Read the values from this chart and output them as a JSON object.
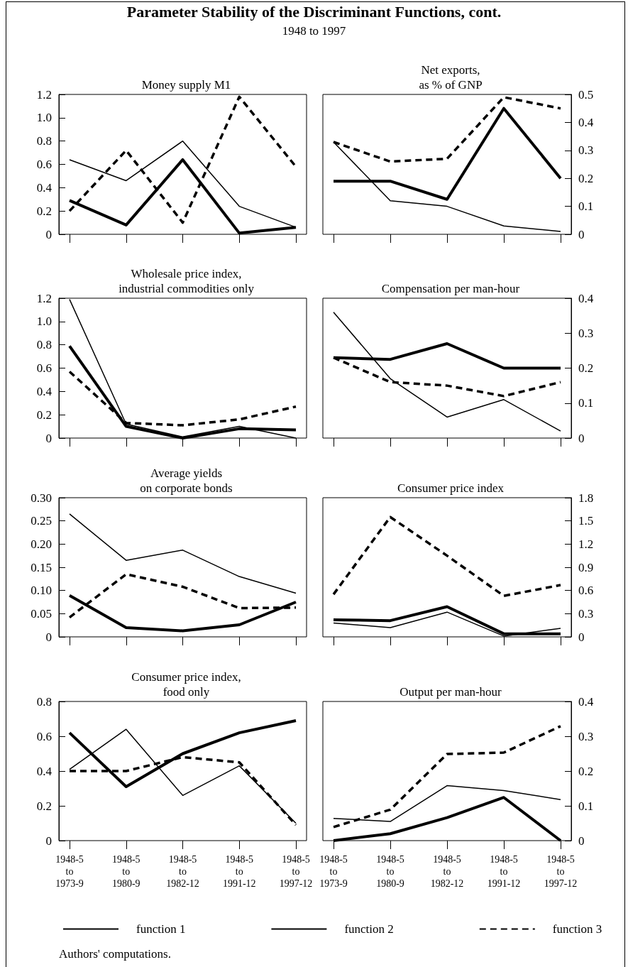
{
  "chart_data": [
    {
      "type": "other",
      "title": "Parameter Stability of the Discriminant Functions, cont.",
      "subtitle": "1948 to 1997",
      "annotations": [
        "Authors' computations."
      ]
    },
    {
      "type": "line",
      "title": "Money supply M1",
      "categories": [
        null,
        null,
        null,
        null,
        null
      ],
      "ylim": [
        0,
        1.2
      ],
      "yticks": [
        0,
        0.2,
        0.4,
        0.6,
        0.8,
        {
          "value": 1,
          "label": "1.0"
        },
        1.2
      ],
      "tick_labels": "y",
      "marker": "none",
      "series": [
        {
          "color": "#000000",
          "line_style": "solid",
          "values": [
            0.29,
            0.08,
            0.64,
            0.01,
            0.06
          ]
        },
        {
          "color": "#000000",
          "line_style": "solid",
          "values": [
            0.64,
            0.46,
            0.8,
            0.24,
            0.06
          ]
        },
        {
          "color": "#000000",
          "line_style": "dashed",
          "values": [
            0.2,
            0.72,
            0.1,
            1.18,
            0.58
          ]
        }
      ]
    },
    {
      "type": "line",
      "title": "Net exports,\nas % of GNP",
      "categories": [
        null,
        null,
        null,
        null,
        null
      ],
      "ylim": [
        0,
        0.5
      ],
      "yticks": [
        0,
        0.1,
        0.2,
        0.3,
        0.4,
        0.5
      ],
      "tick_labels": "y",
      "marker": "none",
      "series": [
        {
          "color": "#000000",
          "line_style": "solid",
          "values": [
            0.19,
            0.19,
            0.125,
            0.45,
            0.2
          ]
        },
        {
          "color": "#000000",
          "line_style": "solid",
          "values": [
            0.33,
            0.12,
            0.1,
            0.03,
            0.01
          ]
        },
        {
          "color": "#000000",
          "line_style": "dashed",
          "values": [
            0.33,
            0.26,
            0.27,
            0.49,
            0.45
          ]
        }
      ]
    },
    {
      "type": "line",
      "title": "Wholesale price index,\nindustrial commodities only",
      "categories": [
        null,
        null,
        null,
        null,
        null
      ],
      "ylim": [
        0,
        1.2
      ],
      "yticks": [
        0,
        0.2,
        0.4,
        0.6,
        0.8,
        {
          "value": 1,
          "label": "1.0"
        },
        1.2
      ],
      "tick_labels": "y",
      "marker": "none",
      "series": [
        {
          "color": "#000000",
          "line_style": "solid",
          "values": [
            0.79,
            0.1,
            0.0,
            0.08,
            0.07
          ]
        },
        {
          "color": "#000000",
          "line_style": "solid",
          "values": [
            1.19,
            0.12,
            0.01,
            0.1,
            0.0
          ]
        },
        {
          "color": "#000000",
          "line_style": "dashed",
          "values": [
            0.57,
            0.13,
            0.11,
            0.16,
            0.27
          ]
        }
      ]
    },
    {
      "type": "line",
      "title": "Compensation per man-hour",
      "categories": [
        null,
        null,
        null,
        null,
        null
      ],
      "ylim": [
        0,
        0.4
      ],
      "yticks": [
        0,
        0.1,
        0.2,
        0.3,
        0.4
      ],
      "tick_labels": "y",
      "marker": "none",
      "series": [
        {
          "color": "#000000",
          "line_style": "solid",
          "values": [
            0.23,
            0.225,
            0.27,
            0.2,
            0.2
          ]
        },
        {
          "color": "#000000",
          "line_style": "solid",
          "values": [
            0.36,
            0.17,
            0.06,
            0.11,
            0.02
          ]
        },
        {
          "color": "#000000",
          "line_style": "dashed",
          "values": [
            0.23,
            0.16,
            0.15,
            0.12,
            0.16
          ]
        }
      ]
    },
    {
      "type": "line",
      "title": "Average yields\non corporate bonds",
      "categories": [
        null,
        null,
        null,
        null,
        null
      ],
      "ylim": [
        0,
        0.3
      ],
      "yticks": [
        0,
        0.05,
        {
          "value": 0.1,
          "label": "0.10"
        },
        0.15,
        {
          "value": 0.2,
          "label": "0.20"
        },
        0.25,
        {
          "value": 0.3,
          "label": "0.30"
        }
      ],
      "tick_labels": "y",
      "marker": "none",
      "series": [
        {
          "color": "#000000",
          "line_style": "solid",
          "values": [
            0.089,
            0.02,
            0.013,
            0.026,
            0.075
          ]
        },
        {
          "color": "#000000",
          "line_style": "solid",
          "values": [
            0.265,
            0.165,
            0.187,
            0.13,
            0.094
          ]
        },
        {
          "color": "#000000",
          "line_style": "dashed",
          "values": [
            0.042,
            0.135,
            0.108,
            0.062,
            0.063
          ]
        }
      ]
    },
    {
      "type": "line",
      "title": "Consumer price index",
      "categories": [
        null,
        null,
        null,
        null,
        null
      ],
      "ylim": [
        0,
        1.8
      ],
      "yticks": [
        0,
        0.3,
        0.6,
        0.9,
        1.2,
        1.5,
        1.8
      ],
      "tick_labels": "y",
      "marker": "none",
      "series": [
        {
          "color": "#000000",
          "line_style": "solid",
          "values": [
            0.22,
            0.21,
            0.39,
            0.04,
            0.04
          ]
        },
        {
          "color": "#000000",
          "line_style": "solid",
          "values": [
            0.18,
            0.12,
            0.32,
            0.01,
            0.11
          ]
        },
        {
          "color": "#000000",
          "line_style": "dashed",
          "values": [
            0.55,
            1.55,
            1.05,
            0.53,
            0.67
          ]
        }
      ]
    },
    {
      "type": "line",
      "title": "Consumer price index,\nfood only",
      "categories": [
        "1948-5\nto\n1973-9",
        "1948-5\nto\n1980-9",
        "1948-5\nto\n1982-12",
        "1948-5\nto\n1991-12",
        "1948-5\nto\n1997-12"
      ],
      "ylim": [
        0,
        0.8
      ],
      "yticks": [
        0,
        0.2,
        0.4,
        0.6,
        0.8
      ],
      "marker": "none",
      "legend": "bottom",
      "series": [
        {
          "name": "function 1",
          "color": "#000000",
          "line_style": "solid",
          "values": [
            0.62,
            0.31,
            0.5,
            0.62,
            0.69
          ]
        },
        {
          "name": "function 2",
          "color": "#000000",
          "line_style": "solid",
          "values": [
            0.41,
            0.64,
            0.26,
            0.43,
            0.1
          ]
        },
        {
          "name": "function 3",
          "color": "#000000",
          "line_style": "dashed",
          "values": [
            0.4,
            0.4,
            0.48,
            0.45,
            0.09
          ]
        }
      ]
    },
    {
      "type": "line",
      "title": "Output per man-hour",
      "categories": [
        "1948-5\nto\n1973-9",
        "1948-5\nto\n1980-9",
        "1948-5\nto\n1982-12",
        "1948-5\nto\n1991-12",
        "1948-5\nto\n1997-12"
      ],
      "ylim": [
        0,
        0.4
      ],
      "yticks": [
        0,
        0.1,
        0.2,
        0.3,
        0.4
      ],
      "marker": "none",
      "series": [
        {
          "color": "#000000",
          "line_style": "solid",
          "values": [
            0.0,
            0.02,
            0.066,
            0.124,
            0.0
          ]
        },
        {
          "color": "#000000",
          "line_style": "solid",
          "values": [
            0.064,
            0.055,
            0.158,
            0.144,
            0.118
          ]
        },
        {
          "color": "#000000",
          "line_style": "dashed",
          "values": [
            0.039,
            0.089,
            0.249,
            0.253,
            0.329
          ]
        }
      ]
    }
  ]
}
